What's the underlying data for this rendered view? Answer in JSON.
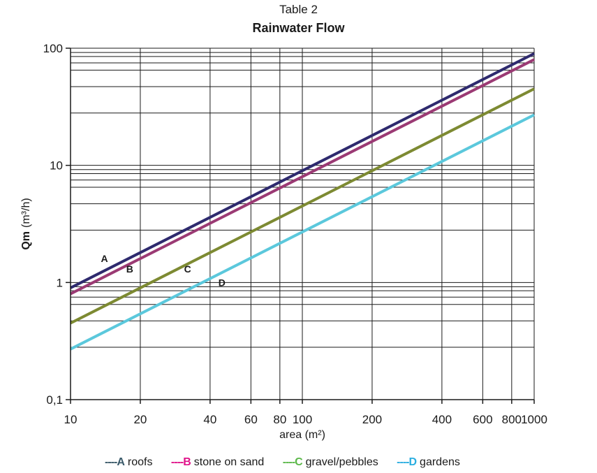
{
  "chart_data": {
    "type": "line",
    "title": "Table 2",
    "subtitle": "Rainwater Flow",
    "xlabel": "area (m²)",
    "ylabel_bold": "Qm",
    "ylabel_unit": "(m³/h)",
    "x_scale": "log",
    "y_scale": "log",
    "xlim": [
      10,
      1000
    ],
    "ylim": [
      0.1,
      100
    ],
    "grid": true,
    "legend_position": "bottom",
    "x_ticks": [
      {
        "value": 10,
        "label": "10"
      },
      {
        "value": 20,
        "label": "20"
      },
      {
        "value": 40,
        "label": "40"
      },
      {
        "value": 60,
        "label": "60"
      },
      {
        "value": 80,
        "label": "80"
      },
      {
        "value": 100,
        "label": "100"
      },
      {
        "value": 200,
        "label": "200"
      },
      {
        "value": 400,
        "label": "400"
      },
      {
        "value": 600,
        "label": "600"
      },
      {
        "value": 800,
        "label": "800"
      },
      {
        "value": 1000,
        "label": "1000"
      }
    ],
    "x_gridlines": [
      10,
      20,
      40,
      60,
      80,
      100,
      200,
      400,
      600,
      800,
      1000
    ],
    "y_ticks": [
      {
        "value": 0.1,
        "label": "0,1"
      },
      {
        "value": 1,
        "label": "1"
      },
      {
        "value": 10,
        "label": "10"
      },
      {
        "value": 100,
        "label": "100"
      }
    ],
    "y_gridlines": [
      0.1,
      0.28,
      0.47,
      0.65,
      0.75,
      0.85,
      0.92,
      1,
      2.8,
      4.7,
      6.5,
      7.5,
      8.5,
      9.2,
      10,
      28,
      47,
      65,
      75,
      85,
      92,
      100
    ],
    "series": [
      {
        "name": "roofs",
        "key": "A",
        "color": "#2e2a6e",
        "x": [
          10,
          1000
        ],
        "y": [
          0.9,
          90
        ],
        "label_at": [
          14,
          1.6
        ]
      },
      {
        "name": "stone on sand",
        "key": "B",
        "color": "#9b3a74",
        "x": [
          10,
          1000
        ],
        "y": [
          0.8,
          80
        ],
        "label_at": [
          18,
          1.3
        ]
      },
      {
        "name": "gravel/pebbles",
        "key": "C",
        "color": "#7d8a32",
        "x": [
          10,
          1000
        ],
        "y": [
          0.45,
          45
        ],
        "label_at": [
          32,
          1.3
        ]
      },
      {
        "name": "gardens",
        "key": "D",
        "color": "#5bc8dc",
        "x": [
          10,
          1000
        ],
        "y": [
          0.27,
          27
        ],
        "label_at": [
          45,
          1.0
        ]
      }
    ]
  },
  "legend": {
    "items": [
      {
        "dash": "----",
        "key": "A",
        "label": "roofs",
        "dash_color": "#3a5a6a",
        "key_color": "#3a5a6a"
      },
      {
        "dash": "----",
        "key": "B",
        "label": "stone on sand",
        "dash_color": "#e0148a",
        "key_color": "#e0148a"
      },
      {
        "dash": "----",
        "key": "C",
        "label": "gravel/pebbles",
        "dash_color": "#5cb84a",
        "key_color": "#5cb84a"
      },
      {
        "dash": "----",
        "key": "D",
        "label": "gardens",
        "dash_color": "#2aaee0",
        "key_color": "#2aaee0"
      }
    ]
  }
}
